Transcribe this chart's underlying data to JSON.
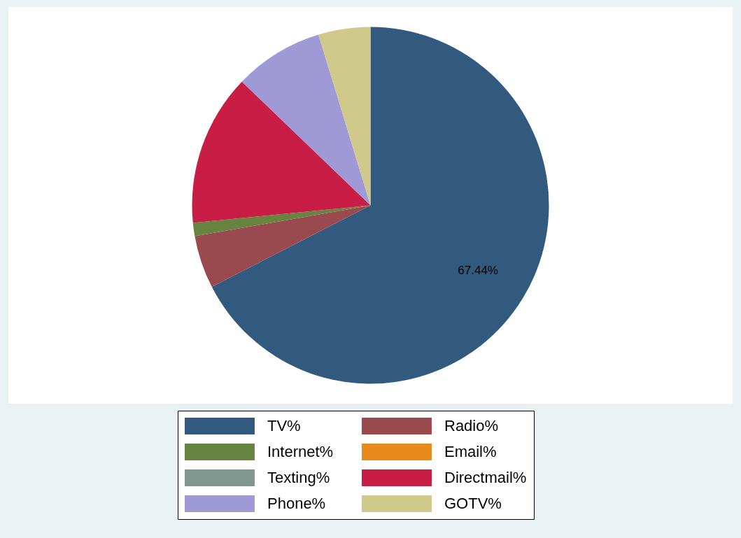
{
  "chart_data": {
    "type": "pie",
    "categories": [
      "TV%",
      "Radio%",
      "Internet%",
      "Email%",
      "Texting%",
      "Directmail%",
      "Phone%",
      "GOTV%"
    ],
    "values": [
      67.44,
      4.8,
      1.2,
      0,
      0,
      13.75,
      8.1,
      4.71
    ],
    "colors": [
      "#325a7e",
      "#9a4a4f",
      "#66833f",
      "#e8891c",
      "#7f978f",
      "#c81e45",
      "#9f99d6",
      "#cfc98c"
    ],
    "value_labels": [
      "67.44%",
      null,
      null,
      null,
      null,
      null,
      null,
      null
    ],
    "legend": "bottom"
  }
}
